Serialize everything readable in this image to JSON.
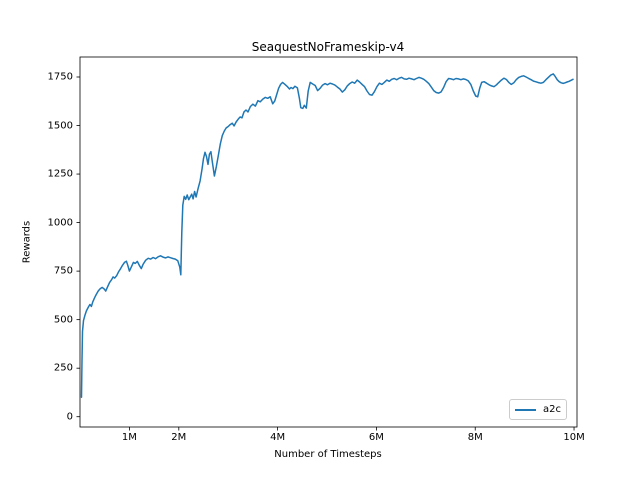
{
  "figure": {
    "title": "SeaquestNoFrameskip-v4",
    "x_axis_label": "Number of Timesteps",
    "y_axis_label": "Rewards",
    "legend": {
      "position": "lower right",
      "entries": [
        {
          "label": "a2c",
          "color": "#1f77b4"
        }
      ]
    }
  },
  "colors": {
    "line": "#1f77b4",
    "background": "#ffffff",
    "axis": "#000000",
    "legend_border": "#cccccc"
  },
  "chart_data": {
    "type": "line",
    "title": "SeaquestNoFrameskip-v4",
    "xlabel": "Number of Timesteps",
    "ylabel": "Rewards",
    "x_unit": "millions of timesteps",
    "grid": false,
    "legend_position": "lower right",
    "xlim": [
      0,
      10.06
    ],
    "ylim": [
      -53,
      1853
    ],
    "x_ticks": [
      {
        "value": 1,
        "label": "1M"
      },
      {
        "value": 2,
        "label": "2M"
      },
      {
        "value": 4,
        "label": "4M"
      },
      {
        "value": 6,
        "label": "6M"
      },
      {
        "value": 8,
        "label": "8M"
      },
      {
        "value": 10,
        "label": "10M"
      }
    ],
    "y_ticks": [
      {
        "value": 0,
        "label": "0"
      },
      {
        "value": 250,
        "label": "250"
      },
      {
        "value": 500,
        "label": "500"
      },
      {
        "value": 750,
        "label": "750"
      },
      {
        "value": 1000,
        "label": "1000"
      },
      {
        "value": 1250,
        "label": "1250"
      },
      {
        "value": 1500,
        "label": "1500"
      },
      {
        "value": 1750,
        "label": "1750"
      }
    ],
    "series": [
      {
        "name": "a2c",
        "color": "#1f77b4",
        "points": [
          [
            0.03,
            100
          ],
          [
            0.04,
            290
          ],
          [
            0.05,
            440
          ],
          [
            0.07,
            495
          ],
          [
            0.1,
            522
          ],
          [
            0.13,
            545
          ],
          [
            0.17,
            565
          ],
          [
            0.2,
            578
          ],
          [
            0.23,
            568
          ],
          [
            0.26,
            592
          ],
          [
            0.3,
            615
          ],
          [
            0.33,
            630
          ],
          [
            0.37,
            648
          ],
          [
            0.41,
            660
          ],
          [
            0.45,
            666
          ],
          [
            0.49,
            658
          ],
          [
            0.52,
            647
          ],
          [
            0.56,
            670
          ],
          [
            0.6,
            692
          ],
          [
            0.64,
            706
          ],
          [
            0.67,
            720
          ],
          [
            0.7,
            714
          ],
          [
            0.74,
            726
          ],
          [
            0.78,
            746
          ],
          [
            0.82,
            762
          ],
          [
            0.86,
            780
          ],
          [
            0.9,
            795
          ],
          [
            0.94,
            801
          ],
          [
            0.97,
            778
          ],
          [
            1.0,
            750
          ],
          [
            1.04,
            772
          ],
          [
            1.08,
            795
          ],
          [
            1.12,
            790
          ],
          [
            1.16,
            800
          ],
          [
            1.2,
            780
          ],
          [
            1.24,
            763
          ],
          [
            1.28,
            786
          ],
          [
            1.33,
            806
          ],
          [
            1.38,
            816
          ],
          [
            1.43,
            812
          ],
          [
            1.48,
            820
          ],
          [
            1.53,
            814
          ],
          [
            1.58,
            824
          ],
          [
            1.63,
            829
          ],
          [
            1.68,
            822
          ],
          [
            1.73,
            818
          ],
          [
            1.78,
            823
          ],
          [
            1.83,
            819
          ],
          [
            1.88,
            815
          ],
          [
            1.93,
            812
          ],
          [
            1.98,
            803
          ],
          [
            2.02,
            770
          ],
          [
            2.04,
            731
          ],
          [
            2.06,
            950
          ],
          [
            2.08,
            1090
          ],
          [
            2.11,
            1135
          ],
          [
            2.14,
            1120
          ],
          [
            2.17,
            1142
          ],
          [
            2.2,
            1118
          ],
          [
            2.23,
            1132
          ],
          [
            2.26,
            1146
          ],
          [
            2.29,
            1122
          ],
          [
            2.32,
            1160
          ],
          [
            2.35,
            1132
          ],
          [
            2.39,
            1176
          ],
          [
            2.43,
            1215
          ],
          [
            2.47,
            1275
          ],
          [
            2.5,
            1330
          ],
          [
            2.53,
            1362
          ],
          [
            2.56,
            1340
          ],
          [
            2.59,
            1300
          ],
          [
            2.62,
            1352
          ],
          [
            2.65,
            1365
          ],
          [
            2.68,
            1310
          ],
          [
            2.72,
            1240
          ],
          [
            2.76,
            1290
          ],
          [
            2.8,
            1345
          ],
          [
            2.84,
            1405
          ],
          [
            2.88,
            1448
          ],
          [
            2.92,
            1472
          ],
          [
            2.96,
            1488
          ],
          [
            3.0,
            1495
          ],
          [
            3.04,
            1505
          ],
          [
            3.08,
            1512
          ],
          [
            3.12,
            1498
          ],
          [
            3.16,
            1518
          ],
          [
            3.2,
            1532
          ],
          [
            3.24,
            1544
          ],
          [
            3.28,
            1540
          ],
          [
            3.32,
            1570
          ],
          [
            3.36,
            1580
          ],
          [
            3.4,
            1570
          ],
          [
            3.45,
            1598
          ],
          [
            3.5,
            1610
          ],
          [
            3.55,
            1600
          ],
          [
            3.6,
            1628
          ],
          [
            3.65,
            1622
          ],
          [
            3.7,
            1636
          ],
          [
            3.75,
            1645
          ],
          [
            3.8,
            1640
          ],
          [
            3.85,
            1648
          ],
          [
            3.9,
            1612
          ],
          [
            3.94,
            1626
          ],
          [
            3.98,
            1658
          ],
          [
            4.02,
            1692
          ],
          [
            4.06,
            1712
          ],
          [
            4.1,
            1722
          ],
          [
            4.15,
            1712
          ],
          [
            4.2,
            1700
          ],
          [
            4.24,
            1688
          ],
          [
            4.27,
            1696
          ],
          [
            4.31,
            1690
          ],
          [
            4.35,
            1702
          ],
          [
            4.4,
            1694
          ],
          [
            4.44,
            1640
          ],
          [
            4.47,
            1592
          ],
          [
            4.51,
            1588
          ],
          [
            4.54,
            1604
          ],
          [
            4.58,
            1590
          ],
          [
            4.62,
            1678
          ],
          [
            4.66,
            1722
          ],
          [
            4.71,
            1714
          ],
          [
            4.76,
            1706
          ],
          [
            4.81,
            1680
          ],
          [
            4.86,
            1692
          ],
          [
            4.91,
            1708
          ],
          [
            4.96,
            1716
          ],
          [
            5.01,
            1710
          ],
          [
            5.06,
            1718
          ],
          [
            5.11,
            1714
          ],
          [
            5.16,
            1708
          ],
          [
            5.21,
            1698
          ],
          [
            5.26,
            1688
          ],
          [
            5.31,
            1672
          ],
          [
            5.36,
            1684
          ],
          [
            5.41,
            1704
          ],
          [
            5.46,
            1716
          ],
          [
            5.51,
            1724
          ],
          [
            5.56,
            1718
          ],
          [
            5.61,
            1734
          ],
          [
            5.66,
            1724
          ],
          [
            5.71,
            1712
          ],
          [
            5.76,
            1700
          ],
          [
            5.81,
            1678
          ],
          [
            5.86,
            1660
          ],
          [
            5.91,
            1656
          ],
          [
            5.96,
            1674
          ],
          [
            6.01,
            1700
          ],
          [
            6.06,
            1718
          ],
          [
            6.11,
            1712
          ],
          [
            6.16,
            1722
          ],
          [
            6.21,
            1734
          ],
          [
            6.26,
            1728
          ],
          [
            6.31,
            1738
          ],
          [
            6.36,
            1742
          ],
          [
            6.41,
            1736
          ],
          [
            6.46,
            1744
          ],
          [
            6.51,
            1748
          ],
          [
            6.56,
            1740
          ],
          [
            6.61,
            1738
          ],
          [
            6.66,
            1744
          ],
          [
            6.71,
            1740
          ],
          [
            6.76,
            1736
          ],
          [
            6.81,
            1742
          ],
          [
            6.86,
            1748
          ],
          [
            6.91,
            1744
          ],
          [
            6.96,
            1738
          ],
          [
            7.01,
            1728
          ],
          [
            7.06,
            1716
          ],
          [
            7.11,
            1698
          ],
          [
            7.16,
            1680
          ],
          [
            7.21,
            1670
          ],
          [
            7.26,
            1667
          ],
          [
            7.31,
            1673
          ],
          [
            7.36,
            1696
          ],
          [
            7.41,
            1726
          ],
          [
            7.46,
            1742
          ],
          [
            7.51,
            1740
          ],
          [
            7.56,
            1736
          ],
          [
            7.61,
            1742
          ],
          [
            7.66,
            1740
          ],
          [
            7.71,
            1736
          ],
          [
            7.76,
            1740
          ],
          [
            7.81,
            1737
          ],
          [
            7.86,
            1730
          ],
          [
            7.91,
            1712
          ],
          [
            7.96,
            1678
          ],
          [
            8.01,
            1652
          ],
          [
            8.05,
            1648
          ],
          [
            8.09,
            1692
          ],
          [
            8.13,
            1722
          ],
          [
            8.18,
            1726
          ],
          [
            8.23,
            1718
          ],
          [
            8.28,
            1710
          ],
          [
            8.33,
            1704
          ],
          [
            8.38,
            1700
          ],
          [
            8.43,
            1710
          ],
          [
            8.48,
            1722
          ],
          [
            8.53,
            1734
          ],
          [
            8.58,
            1744
          ],
          [
            8.63,
            1737
          ],
          [
            8.68,
            1722
          ],
          [
            8.73,
            1712
          ],
          [
            8.78,
            1720
          ],
          [
            8.83,
            1736
          ],
          [
            8.88,
            1748
          ],
          [
            8.93,
            1753
          ],
          [
            8.98,
            1756
          ],
          [
            9.03,
            1750
          ],
          [
            9.08,
            1743
          ],
          [
            9.13,
            1736
          ],
          [
            9.18,
            1729
          ],
          [
            9.23,
            1725
          ],
          [
            9.28,
            1721
          ],
          [
            9.33,
            1718
          ],
          [
            9.38,
            1722
          ],
          [
            9.43,
            1736
          ],
          [
            9.48,
            1748
          ],
          [
            9.53,
            1760
          ],
          [
            9.58,
            1766
          ],
          [
            9.62,
            1752
          ],
          [
            9.66,
            1736
          ],
          [
            9.7,
            1726
          ],
          [
            9.74,
            1720
          ],
          [
            9.78,
            1717
          ],
          [
            9.82,
            1720
          ],
          [
            9.86,
            1724
          ],
          [
            9.9,
            1728
          ],
          [
            9.94,
            1733
          ],
          [
            9.98,
            1738
          ]
        ]
      }
    ]
  }
}
